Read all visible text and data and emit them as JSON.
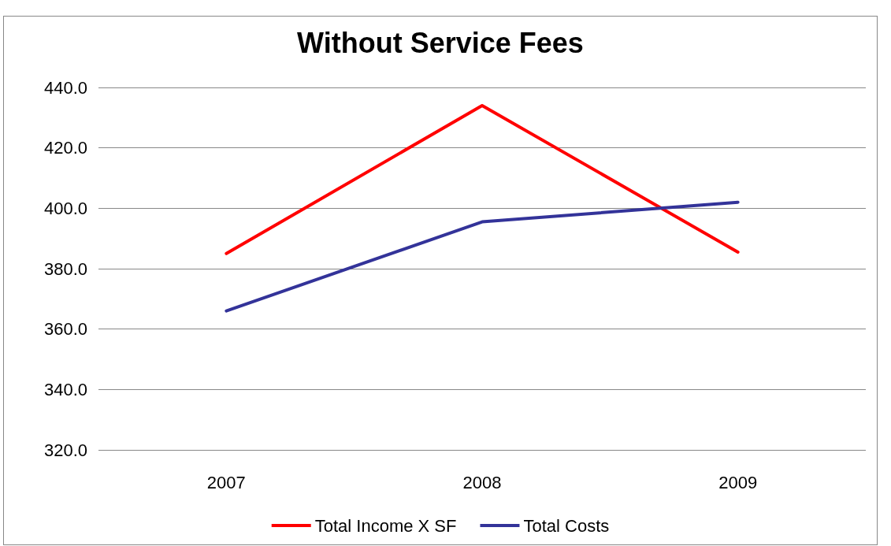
{
  "chart_data": {
    "type": "line",
    "title": "Without Service Fees",
    "categories": [
      "2007",
      "2008",
      "2009"
    ],
    "series": [
      {
        "name": "Total Income X SF",
        "color": "#ff0000",
        "values": [
          385,
          434,
          385.5
        ]
      },
      {
        "name": "Total Costs",
        "color": "#333399",
        "values": [
          366,
          395.5,
          402
        ]
      }
    ],
    "ylim": [
      320,
      440
    ],
    "yticks": [
      {
        "value": 320,
        "label": "320.0"
      },
      {
        "value": 340,
        "label": "340.0"
      },
      {
        "value": 360,
        "label": "360.0"
      },
      {
        "value": 380,
        "label": "380.0"
      },
      {
        "value": 400,
        "label": "400.0"
      },
      {
        "value": 420,
        "label": "420.0"
      },
      {
        "value": 440,
        "label": "440.0"
      }
    ],
    "grid": "y",
    "legend": "bottom",
    "marker": "none",
    "line_style": "solid"
  }
}
